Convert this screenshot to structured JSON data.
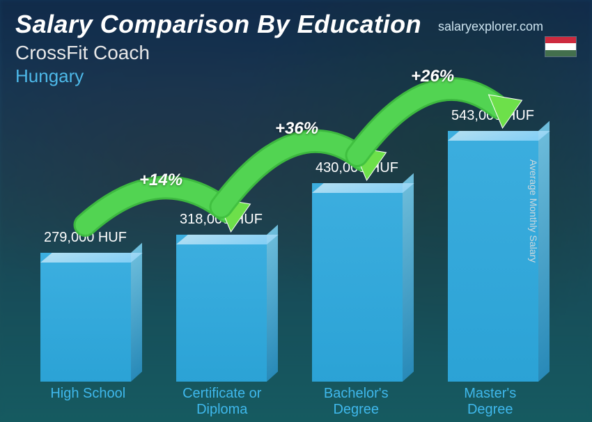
{
  "header": {
    "title": "Salary Comparison By Education",
    "subtitle": "CrossFit Coach",
    "country": "Hungary"
  },
  "brand": "salaryexplorer.com",
  "flag_colors": [
    "#cd2a3e",
    "#ffffff",
    "#436f4d"
  ],
  "side_label": "Average Monthly Salary",
  "chart": {
    "type": "bar",
    "currency": "HUF",
    "bar_color": "#3fb8ec",
    "bar_top_color": "#a8e2fb",
    "bar_side_color": "#7dd4f5",
    "value_color": "#ffffff",
    "category_color": "#3fb8ec",
    "max_value": 543000,
    "chart_area_height": 360,
    "bars": [
      {
        "category": "High School",
        "value": 279000,
        "label": "279,000 HUF"
      },
      {
        "category": "Certificate or Diploma",
        "value": 318000,
        "label": "318,000 HUF"
      },
      {
        "category": "Bachelor's Degree",
        "value": 430000,
        "label": "430,000 HUF"
      },
      {
        "category": "Master's Degree",
        "value": 543000,
        "label": "543,000 HUF"
      }
    ],
    "increases": [
      {
        "from": 0,
        "to": 1,
        "label": "+14%"
      },
      {
        "from": 1,
        "to": 2,
        "label": "+36%"
      },
      {
        "from": 2,
        "to": 3,
        "label": "+26%"
      }
    ],
    "arc_fill": "#3fbf3f",
    "arc_stroke": "#2d9d2d",
    "arrow_fill": "#6de04a"
  }
}
